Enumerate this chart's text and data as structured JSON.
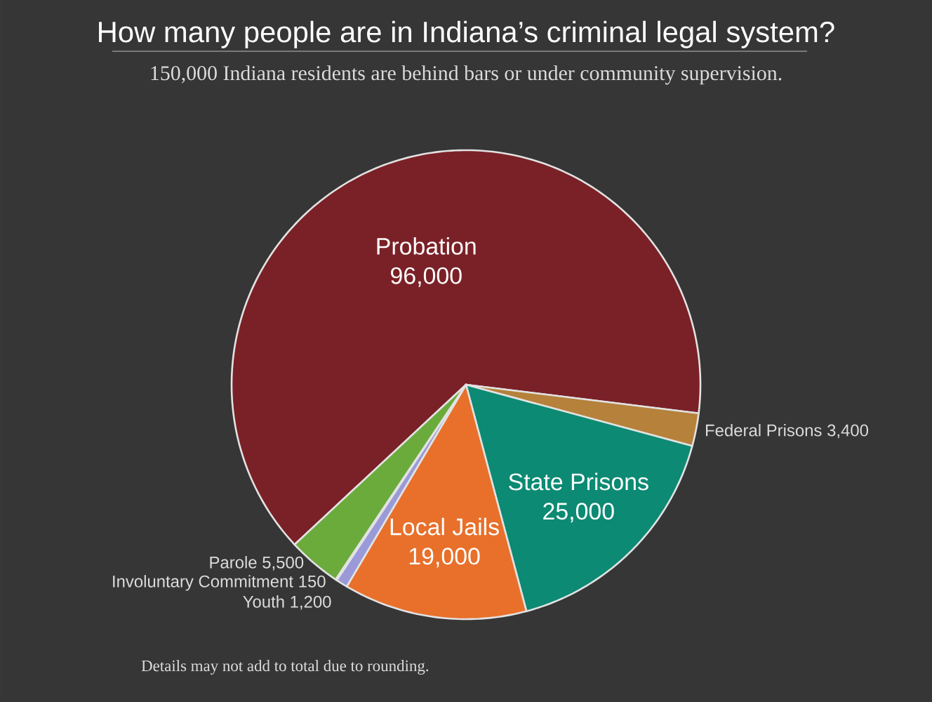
{
  "chart_data": {
    "type": "pie",
    "title": "How many people are in Indiana’s criminal legal system?",
    "subtitle": "150,000 Indiana residents are behind bars or under community supervision.",
    "categories": [
      "Probation",
      "Federal Prisons",
      "State Prisons",
      "Local Jails",
      "Youth",
      "Involuntary Commitment",
      "Parole"
    ],
    "values": [
      96000,
      3400,
      25000,
      19000,
      1200,
      150,
      5500
    ],
    "value_labels": [
      "96,000",
      "3,400",
      "25,000",
      "19,000",
      "1,200",
      "150",
      "5,500"
    ],
    "colors": [
      "#7a2127",
      "#b5813b",
      "#0c8a73",
      "#e8702b",
      "#9a9ad8",
      "#d8d8e8",
      "#6bab3c"
    ],
    "annotations": [
      "Details may not add to total due to rounding."
    ]
  }
}
